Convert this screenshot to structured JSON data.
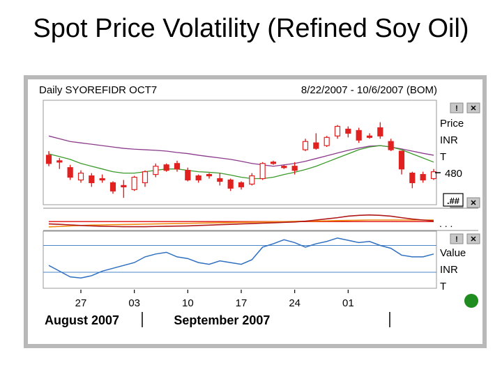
{
  "slide": {
    "title": "Spot Price Volatility (Refined Soy Oil)"
  },
  "chart_data": {
    "type": "candlestick",
    "symbol_label": "Daily SYOREFIDR OCT7",
    "date_range": "8/22/2007 - 10/6/2007 (BOM)",
    "price_panel": {
      "axis_labels": [
        "Price",
        "INR",
        "T"
      ],
      "price_level_label": "480",
      "ylim": [
        462,
        500
      ],
      "candles": [
        {
          "o": 480.0,
          "h": 481.5,
          "l": 476.0,
          "c": 477.0,
          "up": false
        },
        {
          "o": 478.0,
          "h": 479.0,
          "l": 475.0,
          "c": 477.5,
          "up": false
        },
        {
          "o": 475.5,
          "h": 476.5,
          "l": 471.0,
          "c": 472.0,
          "up": false
        },
        {
          "o": 473.5,
          "h": 474.5,
          "l": 470.0,
          "c": 471.0,
          "up": true
        },
        {
          "o": 472.5,
          "h": 473.5,
          "l": 468.5,
          "c": 470.0,
          "up": false
        },
        {
          "o": 471.5,
          "h": 473.0,
          "l": 470.0,
          "c": 471.0,
          "up": false
        },
        {
          "o": 470.0,
          "h": 470.5,
          "l": 466.0,
          "c": 467.0,
          "up": false
        },
        {
          "o": 468.5,
          "h": 471.0,
          "l": 464.5,
          "c": 469.0,
          "up": false
        },
        {
          "o": 467.5,
          "h": 472.5,
          "l": 467.0,
          "c": 472.0,
          "up": true
        },
        {
          "o": 470.0,
          "h": 474.5,
          "l": 468.5,
          "c": 474.0,
          "up": true
        },
        {
          "o": 473.0,
          "h": 477.0,
          "l": 472.0,
          "c": 476.0,
          "up": true
        },
        {
          "o": 476.5,
          "h": 477.0,
          "l": 474.0,
          "c": 474.5,
          "up": false
        },
        {
          "o": 477.0,
          "h": 478.0,
          "l": 474.0,
          "c": 475.0,
          "up": false
        },
        {
          "o": 474.5,
          "h": 475.5,
          "l": 470.5,
          "c": 471.0,
          "up": false
        },
        {
          "o": 472.5,
          "h": 473.0,
          "l": 470.0,
          "c": 471.0,
          "up": false
        },
        {
          "o": 473.0,
          "h": 473.5,
          "l": 471.5,
          "c": 472.5,
          "up": false
        },
        {
          "o": 471.5,
          "h": 473.5,
          "l": 469.0,
          "c": 470.5,
          "up": false
        },
        {
          "o": 471.0,
          "h": 471.5,
          "l": 467.0,
          "c": 468.0,
          "up": false
        },
        {
          "o": 470.0,
          "h": 470.5,
          "l": 467.5,
          "c": 468.5,
          "up": false
        },
        {
          "o": 469.5,
          "h": 473.5,
          "l": 469.0,
          "c": 472.5,
          "up": true
        },
        {
          "o": 471.5,
          "h": 477.5,
          "l": 471.0,
          "c": 477.0,
          "up": true
        },
        {
          "o": 477.5,
          "h": 478.0,
          "l": 476.5,
          "c": 477.0,
          "up": false
        },
        {
          "o": 476.0,
          "h": 476.5,
          "l": 475.0,
          "c": 475.5,
          "up": false
        },
        {
          "o": 476.0,
          "h": 477.5,
          "l": 473.0,
          "c": 474.5,
          "up": false
        },
        {
          "o": 482.0,
          "h": 486.0,
          "l": 481.5,
          "c": 485.0,
          "up": true
        },
        {
          "o": 482.5,
          "h": 488.0,
          "l": 482.0,
          "c": 484.5,
          "up": false
        },
        {
          "o": 483.5,
          "h": 487.0,
          "l": 483.0,
          "c": 486.5,
          "up": true
        },
        {
          "o": 487.0,
          "h": 491.0,
          "l": 486.0,
          "c": 490.5,
          "up": true
        },
        {
          "o": 489.5,
          "h": 490.5,
          "l": 486.5,
          "c": 488.0,
          "up": false
        },
        {
          "o": 489.0,
          "h": 490.0,
          "l": 484.5,
          "c": 485.5,
          "up": false
        },
        {
          "o": 486.5,
          "h": 488.0,
          "l": 486.0,
          "c": 487.0,
          "up": false
        },
        {
          "o": 490.0,
          "h": 492.0,
          "l": 486.0,
          "c": 487.0,
          "up": false
        },
        {
          "o": 485.0,
          "h": 486.0,
          "l": 481.5,
          "c": 482.0,
          "up": false
        },
        {
          "o": 481.5,
          "h": 481.5,
          "l": 473.0,
          "c": 475.0,
          "up": false
        },
        {
          "o": 473.5,
          "h": 474.0,
          "l": 468.0,
          "c": 470.0,
          "up": false
        },
        {
          "o": 473.0,
          "h": 474.0,
          "l": 470.0,
          "c": 471.0,
          "up": false
        },
        {
          "o": 471.5,
          "h": 475.0,
          "l": 471.0,
          "c": 474.0,
          "up": true
        }
      ],
      "moving_averages": [
        {
          "name": "MA long",
          "color": "#8b3a8b",
          "values": [
            487.0,
            486.0,
            485.0,
            484.5,
            484.0,
            483.5,
            483.0,
            482.5,
            482.2,
            482.0,
            481.8,
            481.5,
            481.0,
            480.6,
            480.0,
            479.5,
            479.0,
            478.5,
            477.8,
            477.0,
            476.5,
            476.0,
            476.5,
            477.0,
            477.8,
            478.8,
            479.8,
            480.8,
            481.8,
            482.6,
            483.3,
            483.5,
            483.0,
            482.3,
            481.5,
            480.7,
            480.0
          ]
        },
        {
          "name": "MA short",
          "color": "#3a9a2a",
          "values": [
            480.5,
            479.5,
            478.5,
            477.0,
            476.0,
            475.0,
            474.0,
            473.5,
            473.5,
            474.0,
            474.5,
            475.0,
            475.0,
            474.5,
            474.0,
            473.8,
            473.5,
            472.8,
            472.0,
            471.5,
            471.5,
            472.0,
            473.0,
            473.8,
            474.8,
            476.0,
            477.5,
            479.0,
            480.5,
            482.0,
            483.0,
            483.5,
            483.0,
            482.0,
            480.5,
            479.0,
            477.5
          ]
        }
      ]
    },
    "middle_panel": {
      "label": ". . .",
      "ylim": [
        0,
        1
      ],
      "series": [
        {
          "name": "red line",
          "color": "#e12020",
          "values": [
            0.42,
            0.42,
            0.42,
            0.42,
            0.42,
            0.42,
            0.42,
            0.42,
            0.42,
            0.42,
            0.42,
            0.42,
            0.42,
            0.42,
            0.42,
            0.42,
            0.42,
            0.42,
            0.42,
            0.42,
            0.42,
            0.42,
            0.42,
            0.42,
            0.42,
            0.42,
            0.42,
            0.42,
            0.42,
            0.42,
            0.42,
            0.42,
            0.42,
            0.42,
            0.42,
            0.42,
            0.42
          ]
        },
        {
          "name": "orange line",
          "color": "#f08a10",
          "values": [
            0.15,
            0.17,
            0.2,
            0.22,
            0.24,
            0.25,
            0.26,
            0.27,
            0.28,
            0.29,
            0.3,
            0.31,
            0.32,
            0.33,
            0.34,
            0.35,
            0.36,
            0.37,
            0.38,
            0.39,
            0.4,
            0.41,
            0.42,
            0.43,
            0.44,
            0.45,
            0.46,
            0.47,
            0.48,
            0.49,
            0.5,
            0.5,
            0.5,
            0.5,
            0.5,
            0.5,
            0.5
          ]
        },
        {
          "name": "dark red line",
          "color": "#b01818",
          "values": [
            0.3,
            0.28,
            0.25,
            0.22,
            0.2,
            0.18,
            0.17,
            0.16,
            0.16,
            0.16,
            0.17,
            0.18,
            0.19,
            0.2,
            0.22,
            0.24,
            0.26,
            0.28,
            0.3,
            0.32,
            0.34,
            0.36,
            0.38,
            0.4,
            0.44,
            0.5,
            0.56,
            0.62,
            0.7,
            0.74,
            0.76,
            0.74,
            0.7,
            0.62,
            0.55,
            0.5,
            0.46
          ]
        }
      ]
    },
    "indicator_panel": {
      "axis_labels": [
        "Value",
        "INR",
        "T"
      ],
      "ylim": [
        0,
        1
      ],
      "reference_lines": [
        0.75,
        0.28
      ],
      "series": [
        {
          "name": "value",
          "color": "#2f6fc0",
          "values": [
            0.4,
            0.3,
            0.2,
            0.18,
            0.22,
            0.3,
            0.35,
            0.4,
            0.45,
            0.55,
            0.6,
            0.63,
            0.55,
            0.52,
            0.45,
            0.42,
            0.48,
            0.45,
            0.42,
            0.5,
            0.72,
            0.78,
            0.85,
            0.8,
            0.72,
            0.78,
            0.82,
            0.88,
            0.84,
            0.8,
            0.82,
            0.75,
            0.7,
            0.58,
            0.55,
            0.55,
            0.6
          ]
        }
      ]
    },
    "x_ticks": [
      {
        "index": 3,
        "label": "27"
      },
      {
        "index": 8,
        "label": "03"
      },
      {
        "index": 13,
        "label": "10"
      },
      {
        "index": 18,
        "label": "17"
      },
      {
        "index": 23,
        "label": "24"
      },
      {
        "index": 28,
        "label": "01"
      }
    ],
    "month_labels": [
      {
        "label": "August 2007",
        "index": 0
      },
      {
        "label": "September 2007",
        "index": 13
      }
    ],
    "controls": {
      "pin_symbol": "!",
      "close_symbol": "✕",
      "format_label": ".##"
    },
    "colors": {
      "up_candle": "#ffffff",
      "down_candle": "#e12020",
      "candle_outline": "#e12020",
      "frame": "#b9b9b9",
      "plot_bg": "#ffffff",
      "status_dot": "#1e8c1e"
    }
  }
}
